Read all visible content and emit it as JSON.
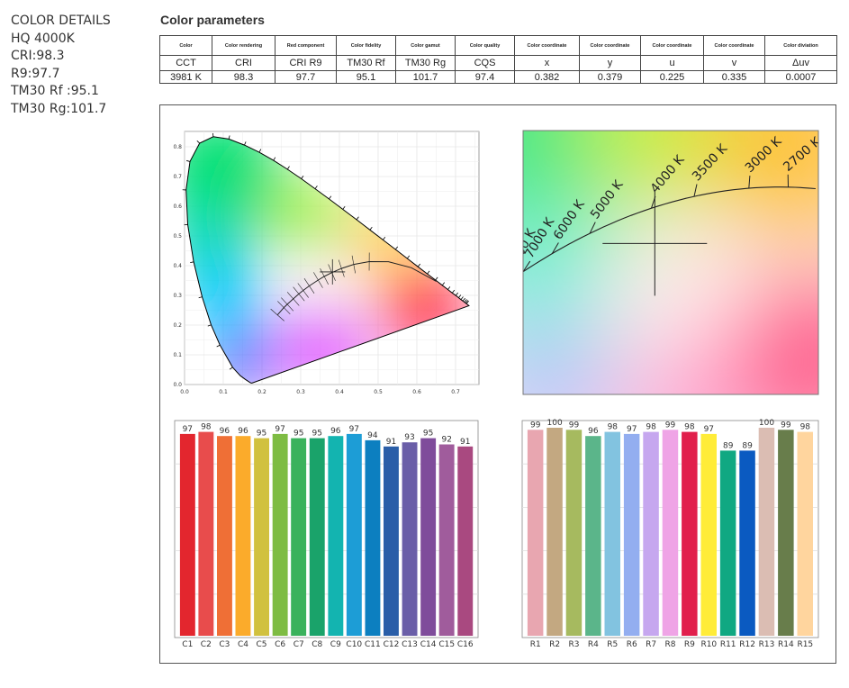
{
  "info": {
    "title": "COLOR DETAILS",
    "model": "HQ 4000K",
    "cri": "CRI:98.3",
    "r9": "R9:97.7",
    "rf": "TM30 Rf :95.1",
    "rg": "TM30 Rg:101.7"
  },
  "params": {
    "title": "Color parameters",
    "headers": [
      "Color",
      "Color rendering",
      "Red component",
      "Color fidelity",
      "Color gamut",
      "Color quality",
      "Color coordinate",
      "Color coordinate",
      "Color coordinate",
      "Color coordinate",
      "Color diviation"
    ],
    "symbols": [
      "CCT",
      "CRI",
      "CRI R9",
      "TM30 Rf",
      "TM30 Rg",
      "CQS",
      "x",
      "y",
      "u",
      "v",
      "Δuv"
    ],
    "values": [
      "3981 K",
      "98.3",
      "97.7",
      "95.1",
      "101.7",
      "97.4",
      "0.382",
      "0.379",
      "0.225",
      "0.335",
      "0.0007"
    ]
  },
  "colors": {
    "C": [
      "#e3262e",
      "#e84c4c",
      "#ef6f36",
      "#fbab2b",
      "#d1c13f",
      "#7ebc43",
      "#3ab25c",
      "#1aa36a",
      "#13b4b0",
      "#1d9dd6",
      "#0c7fc0",
      "#2a5ea8",
      "#6a5ea8",
      "#7f4c9b",
      "#a05c9c",
      "#a94980"
    ],
    "R": [
      "#e8a6b0",
      "#c3a881",
      "#a6ba5f",
      "#5bb58a",
      "#82c3e0",
      "#93aef0",
      "#c6a7ef",
      "#efa4e6",
      "#e11f4c",
      "#ffec38",
      "#10a882",
      "#0a5ac1",
      "#dbbdb3",
      "#687d4b",
      "#ffd59e"
    ]
  },
  "chart_data": [
    {
      "type": "scatter",
      "title": "",
      "xlim": [
        0,
        0.8
      ],
      "ylim": [
        0,
        0.85
      ],
      "x_ticks": [
        0.0,
        0.1,
        0.2,
        0.3,
        0.4,
        0.5,
        0.6,
        0.7
      ],
      "y_ticks": [
        0.0,
        0.1,
        0.2,
        0.3,
        0.4,
        0.5,
        0.6,
        0.7,
        0.8
      ],
      "grid": true,
      "point": {
        "x": 0.382,
        "y": 0.379
      },
      "planckian_locus": [
        [
          0.6499,
          0.3474
        ],
        [
          0.5857,
          0.3931
        ],
        [
          0.5267,
          0.4133
        ],
        [
          0.477,
          0.4137
        ],
        [
          0.4369,
          0.4041
        ],
        [
          0.4053,
          0.3907
        ],
        [
          0.3805,
          0.3768
        ],
        [
          0.3608,
          0.3636
        ],
        [
          0.3451,
          0.3516
        ],
        [
          0.3221,
          0.3318
        ],
        [
          0.3064,
          0.3166
        ],
        [
          0.2952,
          0.3048
        ],
        [
          0.2807,
          0.2883
        ],
        [
          0.2653,
          0.2699
        ],
        [
          0.2565,
          0.2587
        ],
        [
          0.2399,
          0.2341
        ]
      ]
    },
    {
      "type": "scatter",
      "title": "",
      "point": {
        "x": 0.382,
        "y": 0.379
      },
      "cct_labels": [
        "8000 K",
        "7000 K",
        "6000 K",
        "5000 K",
        "4000 K",
        "3500 K",
        "3000 K",
        "2700 K"
      ]
    },
    {
      "type": "bar",
      "title": "",
      "categories": [
        "C1",
        "C2",
        "C3",
        "C4",
        "C5",
        "C6",
        "C7",
        "C8",
        "C9",
        "C10",
        "C11",
        "C12",
        "C13",
        "C14",
        "C15",
        "C16"
      ],
      "values": [
        97,
        98,
        96,
        96,
        95,
        97,
        95,
        95,
        96,
        97,
        94,
        91,
        93,
        95,
        92,
        91
      ],
      "ylim": [
        0,
        100
      ],
      "grid": true
    },
    {
      "type": "bar",
      "title": "",
      "categories": [
        "R1",
        "R2",
        "R3",
        "R4",
        "R5",
        "R6",
        "R7",
        "R8",
        "R9",
        "R10",
        "R11",
        "R12",
        "R13",
        "R14",
        "R15"
      ],
      "values": [
        99,
        100,
        99,
        96,
        98,
        97,
        98,
        99,
        98,
        97,
        89,
        89,
        100,
        99,
        98
      ],
      "ylim": [
        0,
        100
      ],
      "grid": true
    }
  ]
}
